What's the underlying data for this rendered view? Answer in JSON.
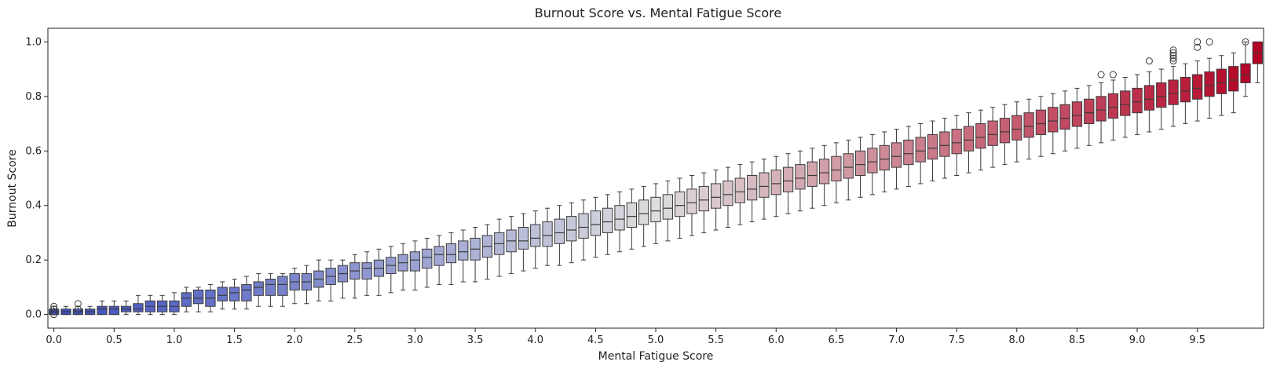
{
  "chart_data": {
    "type": "box",
    "title": "Burnout Score vs. Mental Fatigue Score",
    "xlabel": "Mental Fatigue Score",
    "ylabel": "Burnout Score",
    "x_tick_labels": [
      "0.0",
      "0.5",
      "1.0",
      "1.5",
      "2.0",
      "2.5",
      "3.0",
      "3.5",
      "4.0",
      "4.5",
      "5.0",
      "5.5",
      "6.0",
      "6.5",
      "7.0",
      "7.5",
      "8.0",
      "8.5",
      "9.0",
      "9.5"
    ],
    "y_tick_labels": [
      "0.0",
      "0.2",
      "0.4",
      "0.6",
      "0.8",
      "1.0"
    ],
    "ylim": [
      -0.05,
      1.05
    ],
    "grid": false,
    "legend": "none",
    "colormap": "coolwarm",
    "colors": {
      "low": "#3b4cc0",
      "mid": "#dddddd",
      "high": "#b40426",
      "whisker": "#3a3a3a"
    },
    "x_category_start": 0.0,
    "x_category_step": 0.1,
    "x_category_count": 101,
    "box_stats_summary": "per category [min, q1, median, q3, max]",
    "boxes": [
      [
        0.0,
        0.0,
        0.01,
        0.02,
        0.03
      ],
      [
        0.0,
        0.0,
        0.01,
        0.02,
        0.03
      ],
      [
        0.0,
        0.0,
        0.01,
        0.02,
        0.03
      ],
      [
        0.0,
        0.0,
        0.01,
        0.02,
        0.03
      ],
      [
        0.0,
        0.0,
        0.02,
        0.03,
        0.05
      ],
      [
        0.0,
        0.0,
        0.02,
        0.03,
        0.05
      ],
      [
        0.0,
        0.01,
        0.02,
        0.03,
        0.05
      ],
      [
        0.0,
        0.01,
        0.02,
        0.04,
        0.07
      ],
      [
        0.0,
        0.01,
        0.03,
        0.05,
        0.07
      ],
      [
        0.0,
        0.01,
        0.03,
        0.05,
        0.07
      ],
      [
        0.0,
        0.01,
        0.03,
        0.05,
        0.08
      ],
      [
        0.01,
        0.03,
        0.06,
        0.08,
        0.1
      ],
      [
        0.01,
        0.04,
        0.06,
        0.09,
        0.1
      ],
      [
        0.01,
        0.03,
        0.06,
        0.09,
        0.11
      ],
      [
        0.02,
        0.05,
        0.07,
        0.1,
        0.12
      ],
      [
        0.02,
        0.05,
        0.08,
        0.1,
        0.13
      ],
      [
        0.02,
        0.05,
        0.09,
        0.11,
        0.14
      ],
      [
        0.03,
        0.07,
        0.1,
        0.12,
        0.15
      ],
      [
        0.03,
        0.07,
        0.11,
        0.13,
        0.15
      ],
      [
        0.03,
        0.07,
        0.11,
        0.14,
        0.15
      ],
      [
        0.04,
        0.09,
        0.12,
        0.15,
        0.17
      ],
      [
        0.04,
        0.09,
        0.12,
        0.15,
        0.18
      ],
      [
        0.05,
        0.1,
        0.13,
        0.16,
        0.2
      ],
      [
        0.05,
        0.11,
        0.14,
        0.17,
        0.2
      ],
      [
        0.06,
        0.12,
        0.15,
        0.18,
        0.2
      ],
      [
        0.06,
        0.13,
        0.16,
        0.19,
        0.22
      ],
      [
        0.07,
        0.13,
        0.17,
        0.19,
        0.23
      ],
      [
        0.07,
        0.14,
        0.17,
        0.2,
        0.24
      ],
      [
        0.08,
        0.15,
        0.18,
        0.21,
        0.25
      ],
      [
        0.09,
        0.16,
        0.19,
        0.22,
        0.26
      ],
      [
        0.09,
        0.16,
        0.2,
        0.23,
        0.27
      ],
      [
        0.1,
        0.17,
        0.21,
        0.24,
        0.28
      ],
      [
        0.11,
        0.18,
        0.22,
        0.25,
        0.29
      ],
      [
        0.11,
        0.19,
        0.22,
        0.26,
        0.3
      ],
      [
        0.12,
        0.2,
        0.23,
        0.27,
        0.31
      ],
      [
        0.12,
        0.2,
        0.24,
        0.28,
        0.32
      ],
      [
        0.13,
        0.21,
        0.25,
        0.29,
        0.33
      ],
      [
        0.14,
        0.22,
        0.26,
        0.3,
        0.35
      ],
      [
        0.15,
        0.23,
        0.27,
        0.31,
        0.36
      ],
      [
        0.16,
        0.24,
        0.27,
        0.32,
        0.37
      ],
      [
        0.17,
        0.25,
        0.28,
        0.33,
        0.38
      ],
      [
        0.18,
        0.25,
        0.29,
        0.34,
        0.39
      ],
      [
        0.18,
        0.26,
        0.3,
        0.35,
        0.4
      ],
      [
        0.19,
        0.27,
        0.31,
        0.36,
        0.41
      ],
      [
        0.2,
        0.28,
        0.32,
        0.37,
        0.42
      ],
      [
        0.21,
        0.29,
        0.33,
        0.38,
        0.43
      ],
      [
        0.22,
        0.3,
        0.34,
        0.39,
        0.44
      ],
      [
        0.23,
        0.31,
        0.35,
        0.4,
        0.45
      ],
      [
        0.24,
        0.32,
        0.36,
        0.41,
        0.46
      ],
      [
        0.25,
        0.33,
        0.37,
        0.42,
        0.47
      ],
      [
        0.26,
        0.34,
        0.38,
        0.43,
        0.48
      ],
      [
        0.27,
        0.35,
        0.39,
        0.44,
        0.49
      ],
      [
        0.28,
        0.36,
        0.4,
        0.45,
        0.5
      ],
      [
        0.29,
        0.37,
        0.41,
        0.46,
        0.51
      ],
      [
        0.3,
        0.38,
        0.42,
        0.47,
        0.52
      ],
      [
        0.31,
        0.39,
        0.43,
        0.48,
        0.53
      ],
      [
        0.32,
        0.4,
        0.44,
        0.49,
        0.54
      ],
      [
        0.33,
        0.41,
        0.45,
        0.5,
        0.55
      ],
      [
        0.34,
        0.42,
        0.46,
        0.51,
        0.56
      ],
      [
        0.35,
        0.43,
        0.47,
        0.52,
        0.57
      ],
      [
        0.36,
        0.44,
        0.48,
        0.53,
        0.58
      ],
      [
        0.37,
        0.45,
        0.49,
        0.54,
        0.59
      ],
      [
        0.38,
        0.46,
        0.5,
        0.55,
        0.6
      ],
      [
        0.39,
        0.47,
        0.51,
        0.56,
        0.61
      ],
      [
        0.4,
        0.48,
        0.52,
        0.57,
        0.62
      ],
      [
        0.41,
        0.49,
        0.53,
        0.58,
        0.63
      ],
      [
        0.42,
        0.5,
        0.54,
        0.59,
        0.64
      ],
      [
        0.43,
        0.51,
        0.55,
        0.6,
        0.65
      ],
      [
        0.44,
        0.52,
        0.56,
        0.61,
        0.66
      ],
      [
        0.45,
        0.53,
        0.57,
        0.62,
        0.67
      ],
      [
        0.46,
        0.54,
        0.58,
        0.63,
        0.68
      ],
      [
        0.47,
        0.55,
        0.59,
        0.64,
        0.69
      ],
      [
        0.48,
        0.56,
        0.6,
        0.65,
        0.7
      ],
      [
        0.49,
        0.57,
        0.61,
        0.66,
        0.71
      ],
      [
        0.5,
        0.58,
        0.62,
        0.67,
        0.72
      ],
      [
        0.51,
        0.59,
        0.63,
        0.68,
        0.73
      ],
      [
        0.52,
        0.6,
        0.64,
        0.69,
        0.74
      ],
      [
        0.53,
        0.61,
        0.65,
        0.7,
        0.75
      ],
      [
        0.54,
        0.62,
        0.66,
        0.71,
        0.76
      ],
      [
        0.55,
        0.63,
        0.67,
        0.72,
        0.77
      ],
      [
        0.56,
        0.64,
        0.68,
        0.73,
        0.78
      ],
      [
        0.57,
        0.65,
        0.69,
        0.74,
        0.79
      ],
      [
        0.58,
        0.66,
        0.7,
        0.75,
        0.8
      ],
      [
        0.59,
        0.67,
        0.71,
        0.76,
        0.81
      ],
      [
        0.6,
        0.68,
        0.72,
        0.77,
        0.82
      ],
      [
        0.61,
        0.69,
        0.73,
        0.78,
        0.83
      ],
      [
        0.62,
        0.7,
        0.74,
        0.79,
        0.84
      ],
      [
        0.63,
        0.71,
        0.75,
        0.8,
        0.85
      ],
      [
        0.64,
        0.72,
        0.76,
        0.81,
        0.86
      ],
      [
        0.65,
        0.73,
        0.77,
        0.82,
        0.87
      ],
      [
        0.66,
        0.74,
        0.78,
        0.83,
        0.88
      ],
      [
        0.67,
        0.75,
        0.79,
        0.84,
        0.89
      ],
      [
        0.68,
        0.76,
        0.8,
        0.85,
        0.9
      ],
      [
        0.69,
        0.77,
        0.81,
        0.86,
        0.91
      ],
      [
        0.7,
        0.78,
        0.82,
        0.87,
        0.92
      ],
      [
        0.71,
        0.79,
        0.83,
        0.88,
        0.93
      ],
      [
        0.72,
        0.8,
        0.84,
        0.89,
        0.94
      ],
      [
        0.73,
        0.81,
        0.85,
        0.9,
        0.95
      ],
      [
        0.74,
        0.82,
        0.86,
        0.91,
        0.96
      ],
      [
        0.8,
        0.85,
        0.88,
        0.92,
        1.0
      ],
      [
        0.85,
        0.92,
        0.96,
        1.0,
        1.0
      ]
    ],
    "outliers": [
      {
        "category": 0,
        "values": [
          0.0,
          0.01,
          0.02,
          0.03
        ]
      },
      {
        "category": 2,
        "values": [
          0.02,
          0.04
        ]
      },
      {
        "category": 87,
        "values": [
          0.88
        ]
      },
      {
        "category": 88,
        "values": [
          0.88
        ]
      },
      {
        "category": 91,
        "values": [
          0.93
        ]
      },
      {
        "category": 93,
        "values": [
          0.93,
          0.94,
          0.95,
          0.96,
          0.97
        ]
      },
      {
        "category": 95,
        "values": [
          0.98,
          1.0
        ]
      },
      {
        "category": 96,
        "values": [
          1.0
        ]
      },
      {
        "category": 99,
        "values": [
          1.0
        ]
      }
    ]
  }
}
